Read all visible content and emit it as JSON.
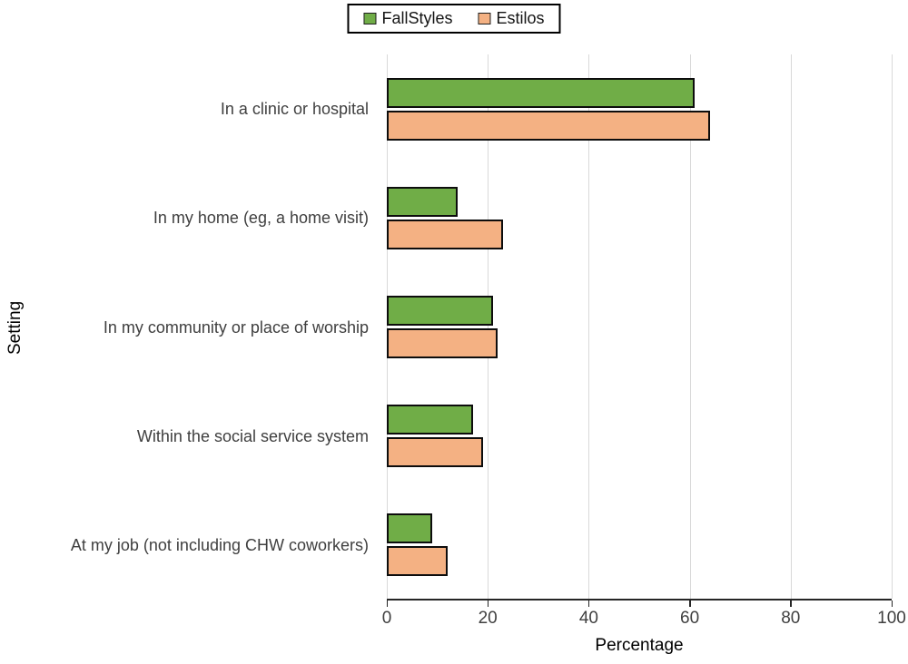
{
  "chart_data": {
    "type": "bar",
    "orientation": "horizontal",
    "title": "",
    "xlabel": "Percentage",
    "ylabel": "Setting",
    "xlim": [
      0,
      100
    ],
    "x_ticks": [
      0,
      20,
      40,
      60,
      80,
      100
    ],
    "grid": "vertical",
    "gridline_color": "#d9d9d9",
    "bar_border_color": "#0d0d0d",
    "legend_position": "top-center",
    "categories": [
      "In a clinic or hospital",
      "In my home (eg, a home visit)",
      "In my community or place of worship",
      "Within the social service system",
      "At my job (not including CHW coworkers)"
    ],
    "series": [
      {
        "name": "FallStyles",
        "color": "#70AD47",
        "values": [
          61,
          14,
          21,
          17,
          9
        ]
      },
      {
        "name": "Estilos",
        "color": "#F4B183",
        "values": [
          64,
          23,
          22,
          19,
          12
        ]
      }
    ]
  }
}
